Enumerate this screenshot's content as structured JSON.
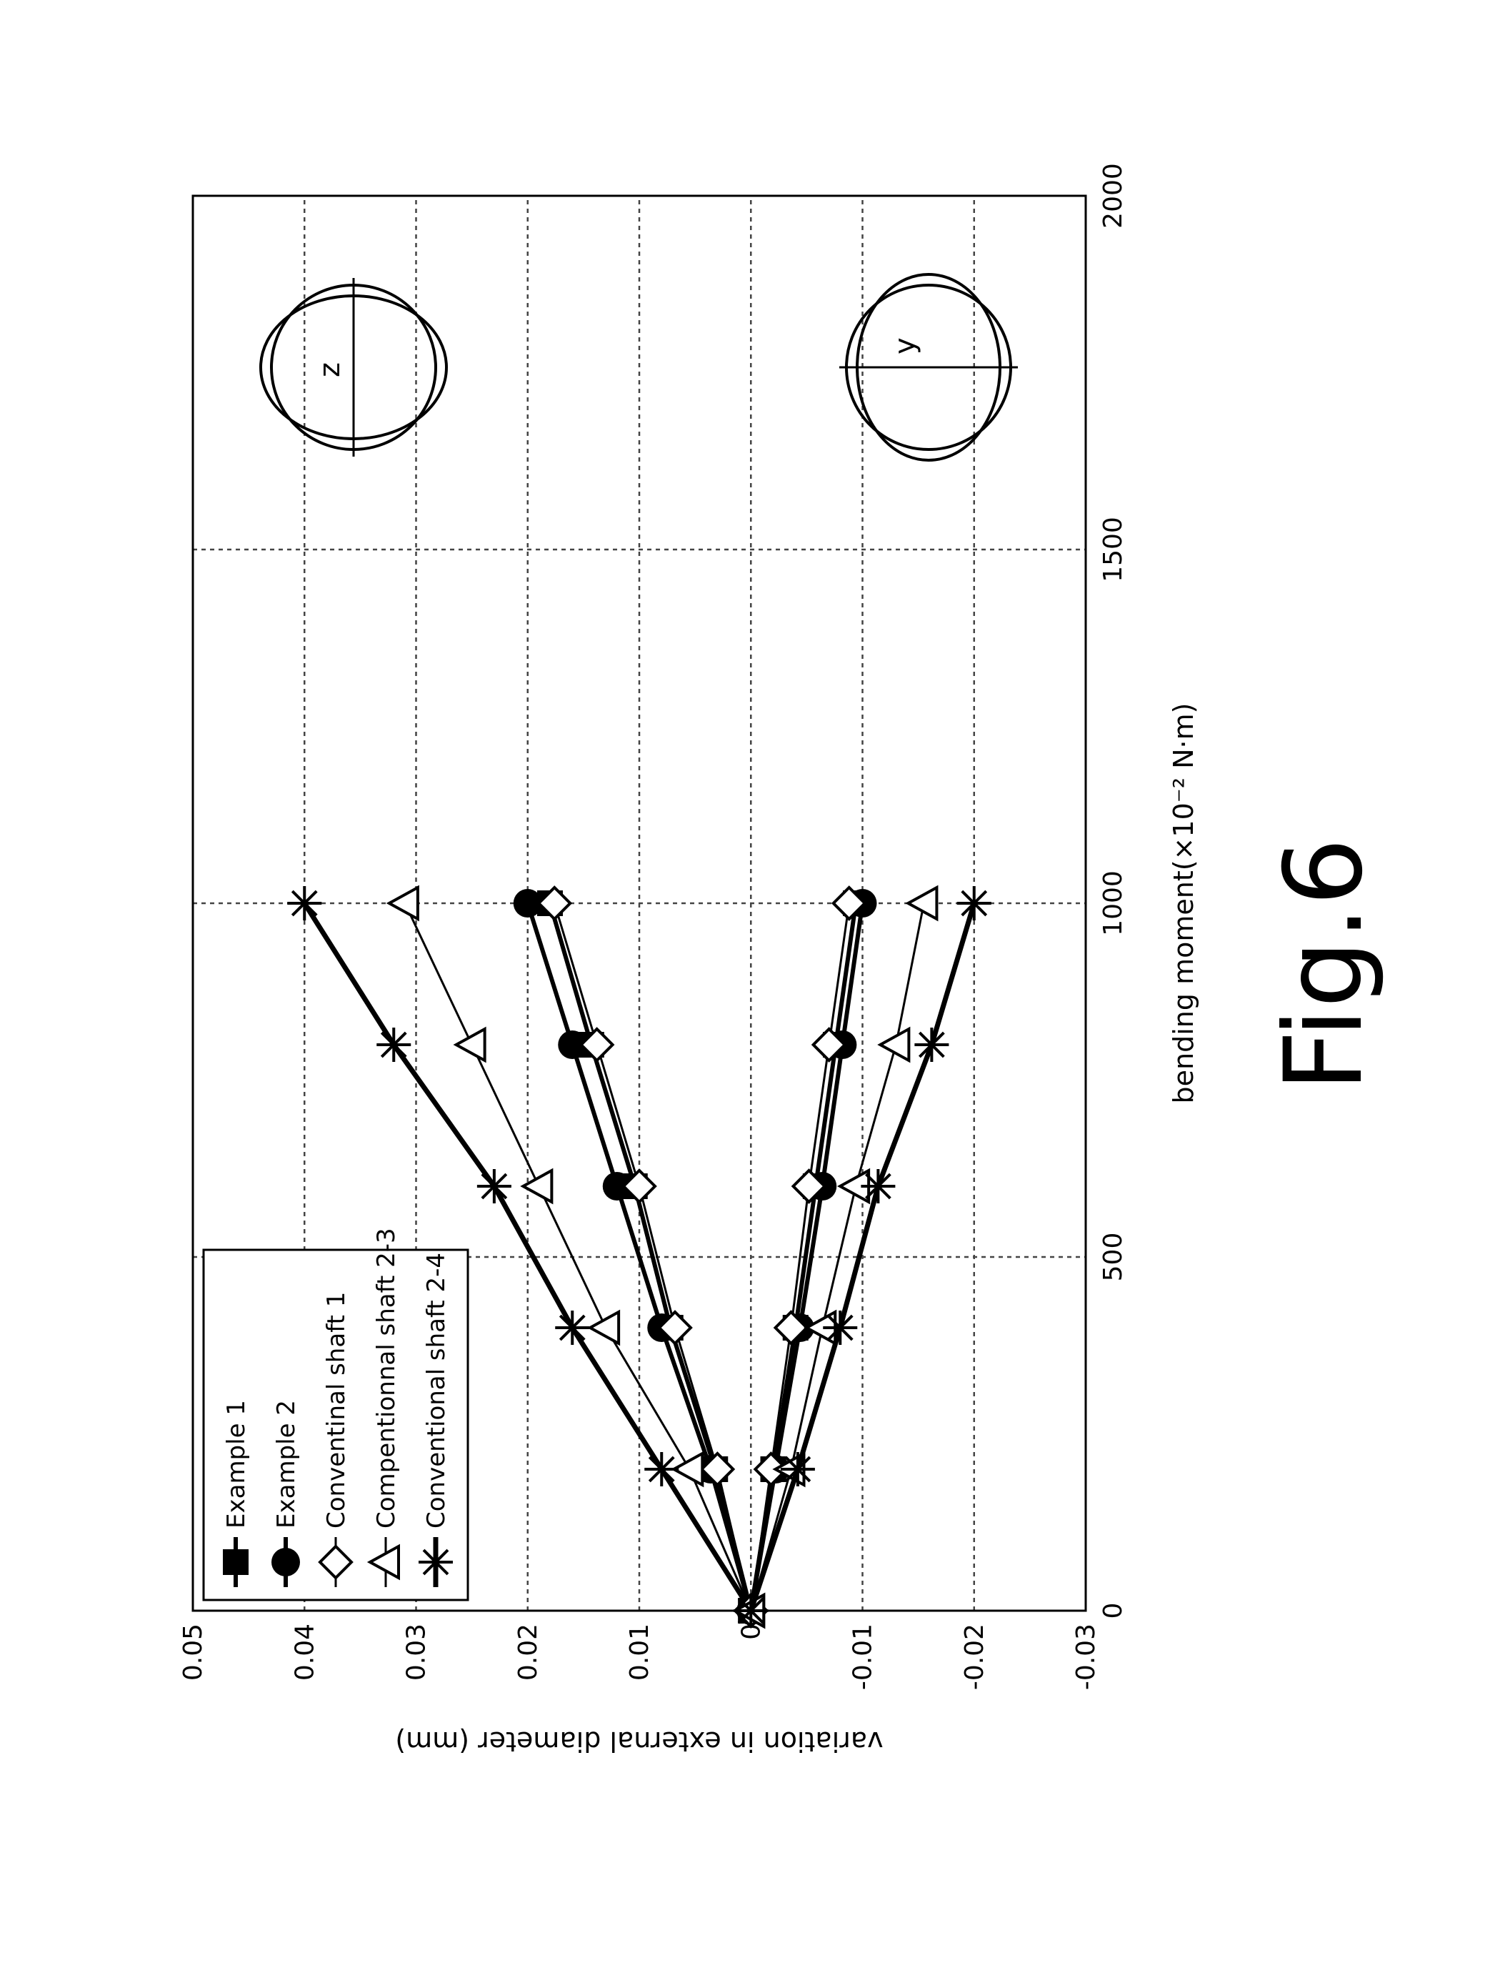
{
  "figure_label": "Fig.6",
  "chart_data": {
    "type": "line",
    "title": "",
    "xlabel": "bending moment(×10⁻² N·m)",
    "ylabel": "variation in external diameter (mm)",
    "xlim": [
      0,
      2000
    ],
    "ylim": [
      -0.03,
      0.05
    ],
    "x_ticks": [
      "0",
      "500",
      "1000",
      "1500",
      "2000"
    ],
    "y_ticks": [
      "0.05",
      "0.04",
      "0.03",
      "0.02",
      "0.01",
      "0",
      "-0.01",
      "-0.02",
      "-0.03"
    ],
    "grid": true,
    "legend_position": "upper-left (rotated figure)",
    "orientation": "figure rotated 90° counter-clockwise",
    "x": [
      0,
      200,
      400,
      600,
      800,
      1000
    ],
    "series": [
      {
        "name": "Example 1",
        "marker": "square-filled",
        "branch": "upper",
        "values": [
          0,
          0.0032,
          0.0072,
          0.0104,
          0.0143,
          0.018
        ]
      },
      {
        "name": "Example 2",
        "marker": "circle-filled",
        "branch": "upper",
        "values": [
          0,
          0.0036,
          0.008,
          0.012,
          0.016,
          0.02
        ]
      },
      {
        "name": "Conventinal shaft 1",
        "marker": "diamond-open",
        "branch": "upper",
        "values": [
          0,
          0.003,
          0.0068,
          0.01,
          0.0138,
          0.0176
        ]
      },
      {
        "name": "Compentionnal shaft 2-3",
        "marker": "triangle-open",
        "branch": "upper",
        "values": [
          0,
          0.0055,
          0.013,
          0.019,
          0.025,
          0.031
        ]
      },
      {
        "name": "Conventional shaft 2-4",
        "marker": "asterisk",
        "branch": "upper",
        "values": [
          0,
          0.008,
          0.016,
          0.023,
          0.032,
          0.04
        ]
      },
      {
        "name": "Example 1",
        "marker": "square-filled",
        "branch": "lower",
        "values": [
          0,
          -0.002,
          -0.004,
          -0.0058,
          -0.0076,
          -0.0094
        ]
      },
      {
        "name": "Example 2",
        "marker": "circle-filled",
        "branch": "lower",
        "values": [
          0,
          -0.0022,
          -0.0044,
          -0.0064,
          -0.0082,
          -0.01
        ]
      },
      {
        "name": "Conventinal shaft 1",
        "marker": "diamond-open",
        "branch": "lower",
        "values": [
          0,
          -0.0018,
          -0.0036,
          -0.0052,
          -0.007,
          -0.0088
        ]
      },
      {
        "name": "Compentionnal shaft 2-3",
        "marker": "triangle-open",
        "branch": "lower",
        "values": [
          0,
          -0.0036,
          -0.0064,
          -0.0094,
          -0.013,
          -0.0155
        ]
      },
      {
        "name": "Conventional shaft 2-4",
        "marker": "asterisk",
        "branch": "lower",
        "values": [
          0,
          -0.0042,
          -0.008,
          -0.0114,
          -0.0162,
          -0.02
        ]
      }
    ],
    "legend": [
      "Example 1",
      "Example 2",
      "Conventinal shaft 1",
      "Compentionnal shaft 2-3",
      "Conventional shaft 2-4"
    ],
    "annotations": {
      "upper_ellipse_label": "z",
      "lower_ellipse_label": "y"
    }
  }
}
